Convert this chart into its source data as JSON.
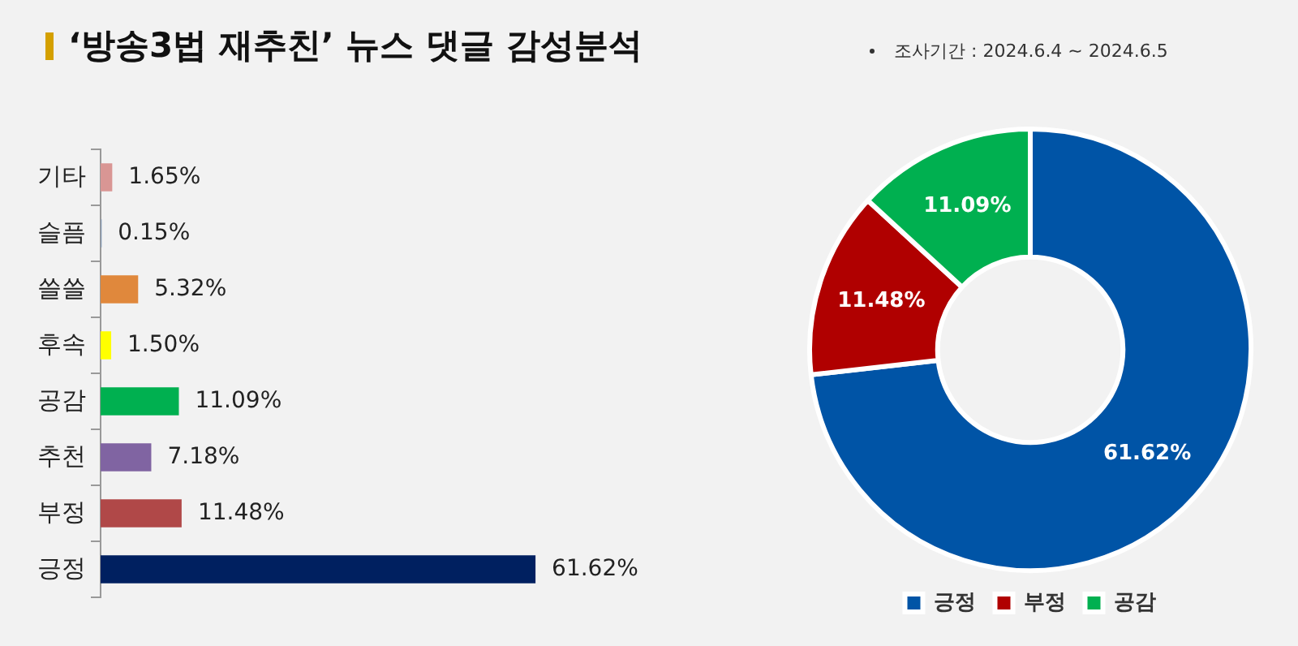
{
  "chart_data": [
    {
      "type": "bar",
      "title": "‘방송3법 재추친’ 뉴스 댓글 감성분석",
      "orientation": "horizontal",
      "tick_labels": "y",
      "legend": false,
      "categories": [
        "기타",
        "슬픔",
        "쓸쓸",
        "후속",
        "공감",
        "추천",
        "부정",
        "긍정"
      ],
      "values": [
        1.65,
        0.15,
        5.32,
        1.5,
        11.09,
        7.18,
        11.48,
        61.62
      ],
      "value_labels": [
        "1.65%",
        "0.15%",
        "5.32%",
        "1.50%",
        "11.09%",
        "7.18%",
        "11.48%",
        "61.62%"
      ],
      "colors": [
        "#d99694",
        "#8497b0",
        "#e0883c",
        "#ffff00",
        "#00b050",
        "#8064a2",
        "#b04848",
        "#002060"
      ]
    },
    {
      "type": "donut",
      "subtitle": "조사기간 : 2024.6.4 ~ 2024.6.5",
      "legend": "bottom",
      "categories": [
        "긍정",
        "부정",
        "공감"
      ],
      "values": [
        61.62,
        11.48,
        11.09
      ],
      "value_labels": [
        "61.62%",
        "11.48%",
        "11.09%"
      ],
      "colors": [
        "#0054a6",
        "#b00000",
        "#00b050"
      ]
    }
  ]
}
